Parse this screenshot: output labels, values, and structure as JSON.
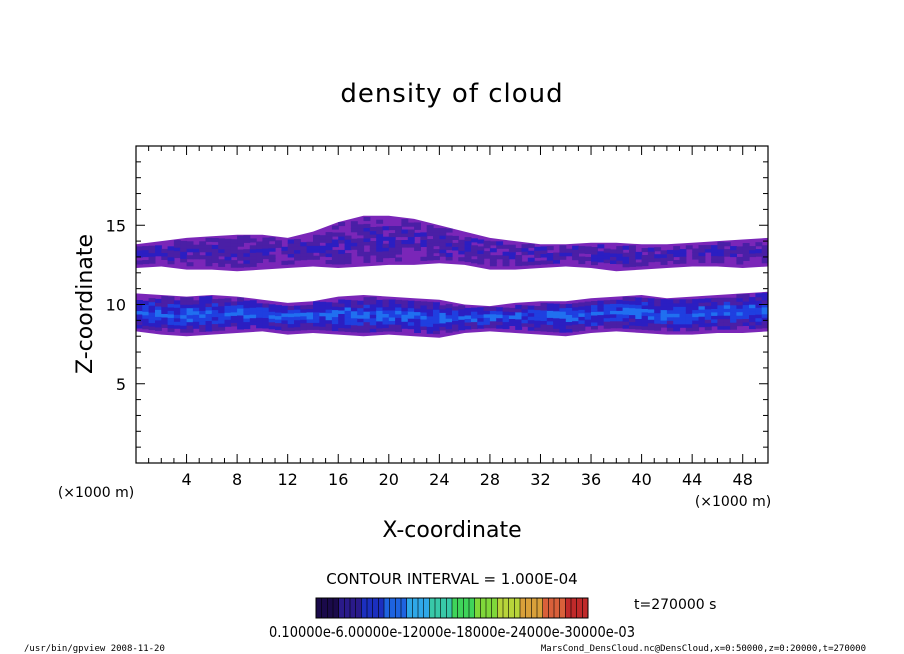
{
  "chart_data": {
    "type": "heatmap",
    "title": "density of cloud",
    "xlabel": "X-coordinate",
    "ylabel": "Z-coordinate",
    "x_unit_left": "(×1000 m)",
    "x_unit_right": "(×1000 m)",
    "xlim": [
      0,
      50
    ],
    "ylim": [
      0,
      20
    ],
    "xticks": [
      4,
      8,
      12,
      16,
      20,
      24,
      28,
      32,
      36,
      40,
      44,
      48
    ],
    "yticks": [
      5,
      10,
      15
    ],
    "contour_interval": "CONTOUR INTERVAL = 1.000E-04",
    "time_label": "t=270000 s",
    "colorbar_label": "0.10000e-6.00000e-12000e-18000e-24000e-30000e-03",
    "colorbar_colors": [
      "#1a0a4a",
      "#2a1a8a",
      "#1b2fbf",
      "#1e63e0",
      "#2fa8e8",
      "#38c9a8",
      "#3fd45a",
      "#7fd83a",
      "#b8d43a",
      "#d9a03a",
      "#d9603a",
      "#c02a2a"
    ],
    "levels": [
      {
        "range": "0.1e-4 - 1e-4",
        "color": "#7a26b8"
      },
      {
        "range": "1e-4 - 2e-4",
        "color": "#4a1fa6"
      },
      {
        "range": "2e-4 - 3e-4",
        "color": "#2b1ec2"
      },
      {
        "range": "3e-4 - 4e-4",
        "color": "#1f3fe0"
      },
      {
        "range": "4e-4 - 5e-4",
        "color": "#2070f0"
      }
    ],
    "cloud_layers": [
      {
        "name": "upper",
        "x": [
          0,
          2,
          4,
          6,
          8,
          10,
          12,
          14,
          16,
          18,
          20,
          22,
          24,
          26,
          28,
          30,
          32,
          34,
          36,
          38,
          40,
          42,
          44,
          46,
          48,
          50
        ],
        "z_top": [
          13.8,
          14.0,
          14.2,
          14.3,
          14.4,
          14.4,
          14.2,
          14.6,
          15.2,
          15.6,
          15.6,
          15.4,
          15.0,
          14.6,
          14.2,
          14.0,
          13.8,
          13.8,
          13.9,
          13.9,
          13.8,
          13.8,
          13.9,
          14.0,
          14.1,
          14.2
        ],
        "z_bottom": [
          12.3,
          12.4,
          12.2,
          12.2,
          12.1,
          12.2,
          12.3,
          12.4,
          12.3,
          12.4,
          12.5,
          12.5,
          12.6,
          12.5,
          12.2,
          12.2,
          12.3,
          12.4,
          12.3,
          12.1,
          12.2,
          12.3,
          12.4,
          12.4,
          12.3,
          12.4
        ],
        "core_level": 1
      },
      {
        "name": "lower",
        "x": [
          0,
          2,
          4,
          6,
          8,
          10,
          12,
          14,
          16,
          18,
          20,
          22,
          24,
          26,
          28,
          30,
          32,
          34,
          36,
          38,
          40,
          42,
          44,
          46,
          48,
          50
        ],
        "z_top": [
          10.7,
          10.6,
          10.5,
          10.6,
          10.5,
          10.3,
          10.1,
          10.2,
          10.5,
          10.6,
          10.5,
          10.4,
          10.3,
          10.0,
          9.9,
          10.1,
          10.2,
          10.2,
          10.4,
          10.5,
          10.6,
          10.4,
          10.5,
          10.6,
          10.7,
          10.8
        ],
        "z_bottom": [
          8.3,
          8.1,
          8.0,
          8.1,
          8.2,
          8.3,
          8.1,
          8.2,
          8.1,
          8.0,
          8.1,
          8.0,
          7.9,
          8.2,
          8.3,
          8.2,
          8.1,
          8.0,
          8.2,
          8.3,
          8.2,
          8.1,
          8.1,
          8.2,
          8.2,
          8.3
        ],
        "core_level": 3
      }
    ]
  },
  "footer": {
    "left": "/usr/bin/gpview   2008-11-20",
    "right": "MarsCond_DensCloud.nc@DensCloud,x=0:50000,z=0:20000,t=270000"
  }
}
